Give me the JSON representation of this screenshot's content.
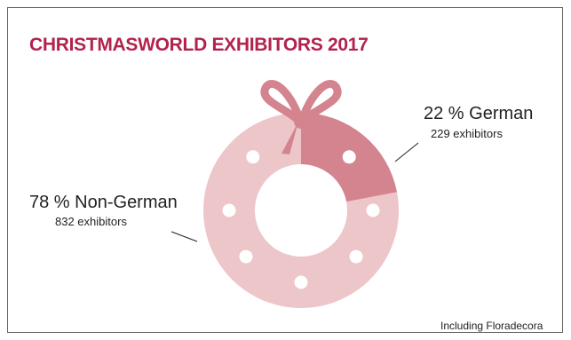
{
  "chart_data": {
    "type": "pie",
    "title": "CHRISTMASWORLD EXHIBITORS 2017",
    "slices": [
      {
        "label": "German",
        "percent_label": "22 %",
        "name_label": "German",
        "value": 22,
        "detail": "229 exhibitors",
        "color": "#d4848f"
      },
      {
        "label": "Non-German",
        "percent_label": "78 %",
        "name_label": "Non-German",
        "value": 78,
        "detail": "832 exhibitors",
        "color": "#ecc6c9"
      }
    ],
    "footnote": "Including Floradecora"
  },
  "colors": {
    "accent": "#b3224c",
    "ribbon": "#d4848f",
    "ring_light": "#ecc6c9",
    "ornament": "#ffffff"
  }
}
